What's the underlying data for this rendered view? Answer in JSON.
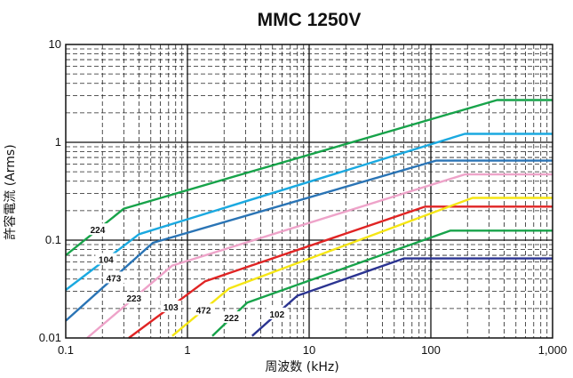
{
  "chart_data": {
    "type": "line",
    "title": "MMC  1250V",
    "xlabel": "周波数 (kHz)",
    "ylabel": "許容電流 (Arms)",
    "xscale": "log",
    "yscale": "log",
    "xlim": [
      0.1,
      1000
    ],
    "ylim": [
      0.01,
      10
    ],
    "xticks": [
      {
        "value": 0.1,
        "label": "0.1"
      },
      {
        "value": 1,
        "label": "1"
      },
      {
        "value": 10,
        "label": "10"
      },
      {
        "value": 100,
        "label": "100"
      },
      {
        "value": 1000,
        "label": "1,000"
      }
    ],
    "yticks": [
      {
        "value": 0.01,
        "label": "0.01"
      },
      {
        "value": 0.1,
        "label": "0.1"
      },
      {
        "value": 1,
        "label": "1"
      },
      {
        "value": 10,
        "label": "10"
      }
    ],
    "grid": true,
    "series": [
      {
        "name": "224",
        "color": "#17a34a",
        "x": [
          0.1,
          0.3,
          350,
          1000
        ],
        "y": [
          0.07,
          0.21,
          2.7,
          2.7
        ]
      },
      {
        "name": "104",
        "color": "#1aa9e0",
        "x": [
          0.1,
          0.4,
          190,
          1000
        ],
        "y": [
          0.031,
          0.115,
          1.22,
          1.22
        ]
      },
      {
        "name": "473",
        "color": "#2a74b5",
        "x": [
          0.1,
          0.52,
          110,
          1000
        ],
        "y": [
          0.015,
          0.094,
          0.65,
          0.65
        ]
      },
      {
        "name": "223",
        "color": "#eea3c9",
        "x": [
          0.15,
          0.75,
          190,
          1000
        ],
        "y": [
          0.01,
          0.055,
          0.47,
          0.47
        ]
      },
      {
        "name": "103",
        "color": "#e02424",
        "x": [
          0.33,
          1.4,
          90,
          1000
        ],
        "y": [
          0.01,
          0.038,
          0.22,
          0.22
        ]
      },
      {
        "name": "472",
        "color": "#f5e614",
        "x": [
          0.75,
          2.2,
          220,
          1000
        ],
        "y": [
          0.0105,
          0.032,
          0.27,
          0.27
        ]
      },
      {
        "name": "222",
        "color": "#17a34a",
        "x": [
          1.6,
          3.1,
          145,
          1000
        ],
        "y": [
          0.0105,
          0.023,
          0.125,
          0.125
        ]
      },
      {
        "name": "102",
        "color": "#2b3491",
        "x": [
          3.4,
          8.0,
          60,
          1000
        ],
        "y": [
          0.0105,
          0.027,
          0.065,
          0.065
        ]
      }
    ]
  }
}
